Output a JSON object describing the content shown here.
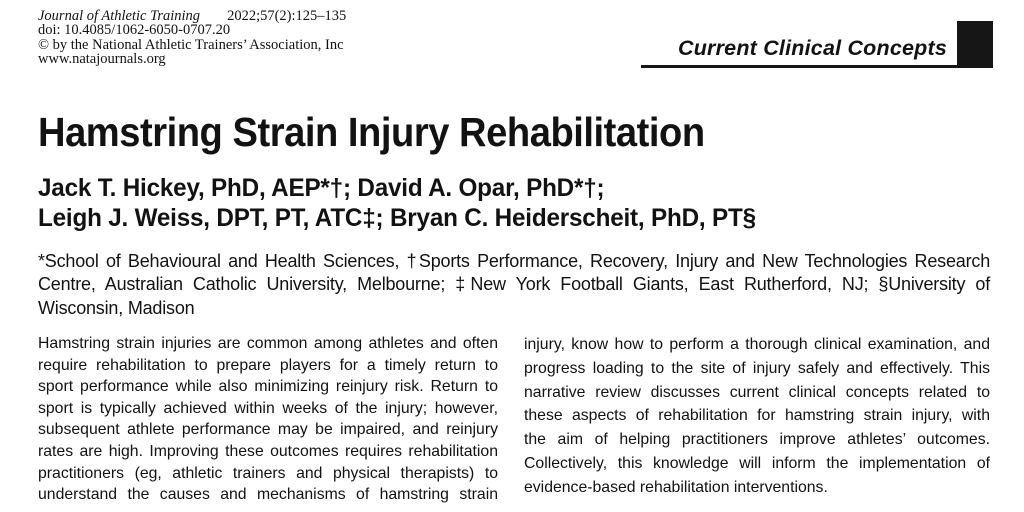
{
  "journal_header": {
    "journal_name": "Journal of Athletic Training",
    "issue_info": "2022;57(2):125–135",
    "doi_line": "doi: 10.4085/1062-6050-0707.20",
    "copyright_line": "© by the National Athletic Trainers’ Association, Inc",
    "website": "www.natajournals.org"
  },
  "banner": {
    "label": "Current Clinical Concepts"
  },
  "article": {
    "title": "Hamstring Strain Injury Rehabilitation",
    "author_lines": [
      "Jack T. Hickey, PhD, AEP*†; David A. Opar, PhD*†;",
      "Leigh J. Weiss, DPT, PT, ATC‡; Bryan C. Heiderscheit, PhD, PT§"
    ],
    "affiliation_lines": [
      "*School of Behavioural and Health Sciences, †Sports Performance, Recovery, Injury and New Technologies Research",
      "Centre, Australian Catholic University, Melbourne; ‡New York Football Giants, East Rutherford, NJ; §University of",
      "Wisconsin, Madison"
    ]
  },
  "abstract": {
    "left_column_lines": [
      "Hamstring strain injuries are common among athletes and often",
      "require rehabilitation to prepare players for a timely return to",
      "sport performance while also minimizing reinjury risk. Return to",
      "sport is typically achieved within weeks of the injury; however,",
      "subsequent athlete performance may be impaired, and reinjury",
      "rates are high. Improving these outcomes requires rehabilitation",
      "practitioners (eg, athletic trainers and physical therapists) to",
      "understand the causes and mechanisms of hamstring strain"
    ],
    "right_column_lines": [
      "injury, know how to perform a thorough clinical examination, and",
      "progress loading to the site of injury safely and effectively. This",
      "narrative review discusses current clinical concepts related to",
      "these aspects of rehabilitation for hamstring strain injury, with",
      "the aim of helping practitioners improve athletes’ outcomes.",
      "Collectively, this knowledge will inform the implementation of",
      "evidence-based rehabilitation interventions."
    ]
  },
  "colors": {
    "text": "#121212",
    "background": "#ffffff",
    "banner_block": "#161616"
  }
}
